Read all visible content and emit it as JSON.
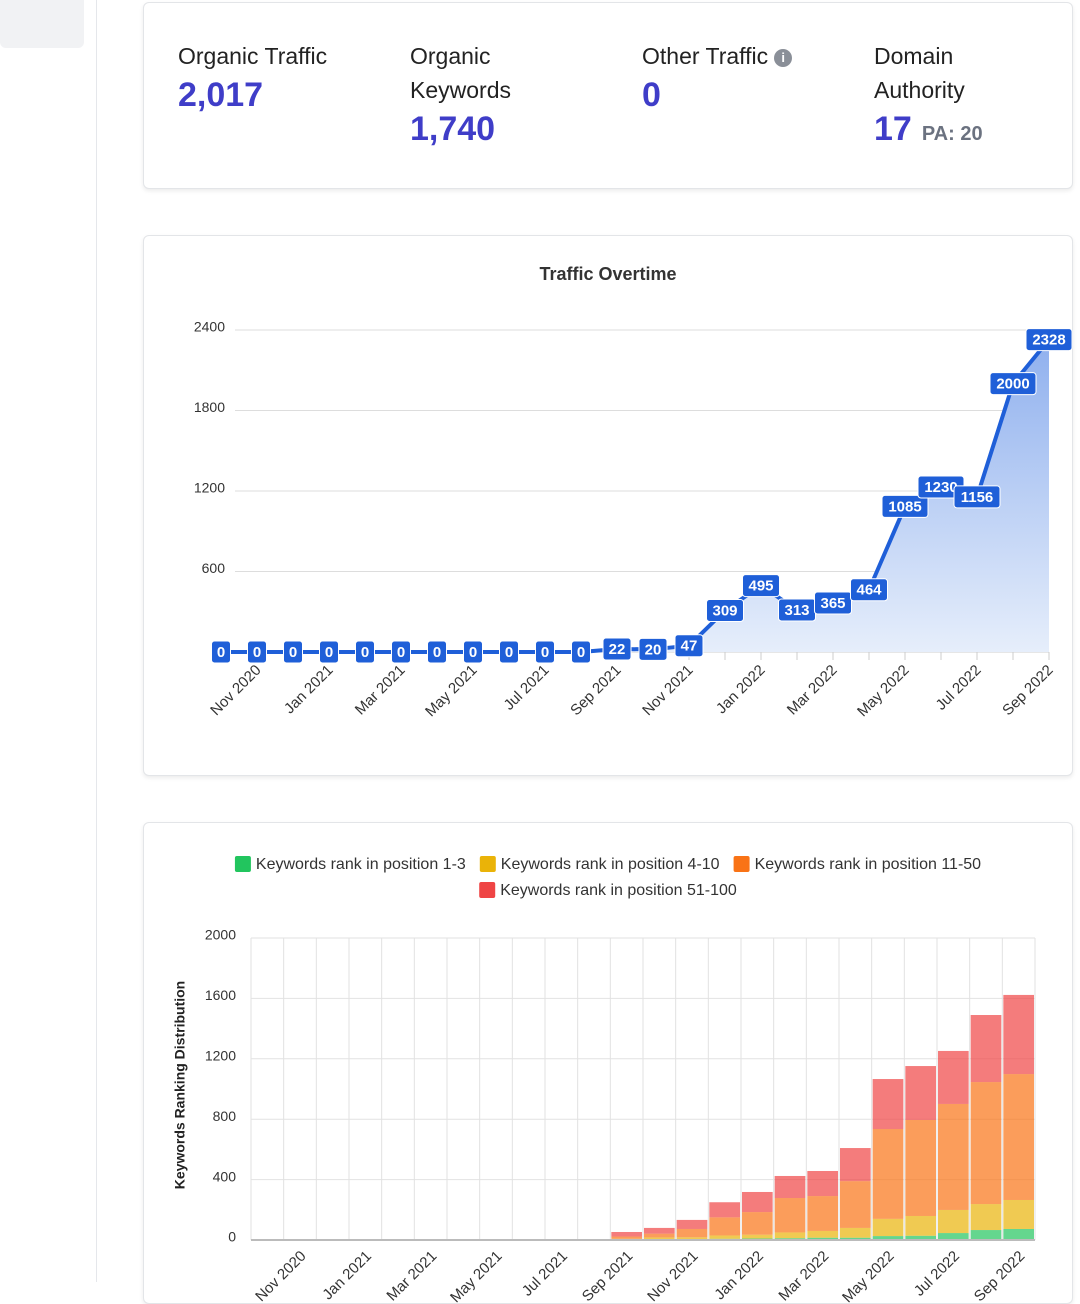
{
  "stats": [
    {
      "label": "Organic Traffic",
      "value": "2,017"
    },
    {
      "label": "Organic Keywords",
      "value": "1,740"
    },
    {
      "label": "Other Traffic",
      "value": "0"
    },
    {
      "label": "Domain Authority",
      "value": "17"
    }
  ],
  "pa": "PA: 20",
  "chart_data": [
    {
      "type": "line",
      "title": "Traffic Overtime",
      "categories": [
        null,
        "Nov 2020",
        null,
        "Jan 2021",
        null,
        "Mar 2021",
        null,
        "May 2021",
        null,
        "Jul 2021",
        null,
        "Sep 2021",
        null,
        "Nov 2021",
        null,
        "Jan 2022",
        null,
        "Mar 2022",
        null,
        "May 2022",
        null,
        "Jul 2022",
        null,
        "Sep 2022"
      ],
      "values": [
        0,
        0,
        0,
        0,
        0,
        0,
        0,
        0,
        0,
        0,
        0,
        22,
        20,
        47,
        309,
        495,
        313,
        365,
        464,
        1085,
        1230,
        1156,
        2000,
        2328
      ],
      "color": "#1f5fd8",
      "ylim": [
        0,
        2400
      ],
      "yticks": [
        600,
        1200,
        1800,
        2400
      ],
      "grid": true
    },
    {
      "type": "bar",
      "stacked": true,
      "ylabel": "Keywords Ranking Distribution",
      "categories": [
        null,
        "Nov 2020",
        null,
        "Jan 2021",
        null,
        "Mar 2021",
        null,
        "May 2021",
        null,
        "Jul 2021",
        null,
        "Sep 2021",
        null,
        "Nov 2021",
        null,
        "Jan 2022",
        null,
        "Mar 2022",
        null,
        "May 2022",
        null,
        "Jul 2022",
        null,
        "Sep 2022"
      ],
      "series": [
        {
          "name": "Keywords rank in position 1-3",
          "color": "#22c55e",
          "values": [
            0,
            0,
            0,
            0,
            0,
            0,
            0,
            0,
            0,
            0,
            0,
            0,
            2,
            3,
            8,
            10,
            12,
            15,
            15,
            26,
            28,
            46,
            66,
            73
          ]
        },
        {
          "name": "Keywords rank in position 4-10",
          "color": "#eab308",
          "values": [
            0,
            0,
            0,
            0,
            0,
            0,
            0,
            0,
            0,
            0,
            1,
            8,
            15,
            15,
            22,
            25,
            38,
            45,
            65,
            114,
            131,
            153,
            172,
            192
          ]
        },
        {
          "name": "Keywords rank in position 11-50",
          "color": "#f97316",
          "values": [
            0,
            0,
            0,
            0,
            0,
            0,
            0,
            0,
            0,
            0,
            2,
            15,
            25,
            55,
            120,
            150,
            228,
            231,
            310,
            595,
            636,
            702,
            808,
            834
          ]
        },
        {
          "name": "Keywords rank in position 51-100",
          "color": "#ef4444",
          "values": [
            0,
            0,
            0,
            0,
            0,
            0,
            0,
            0,
            0,
            0,
            2,
            30,
            38,
            60,
            100,
            133,
            146,
            166,
            219,
            331,
            357,
            351,
            444,
            524
          ]
        }
      ],
      "ylim": [
        0,
        2000
      ],
      "yticks": [
        0,
        400,
        800,
        1200,
        1600,
        2000
      ],
      "grid": true,
      "legend": "top"
    }
  ]
}
